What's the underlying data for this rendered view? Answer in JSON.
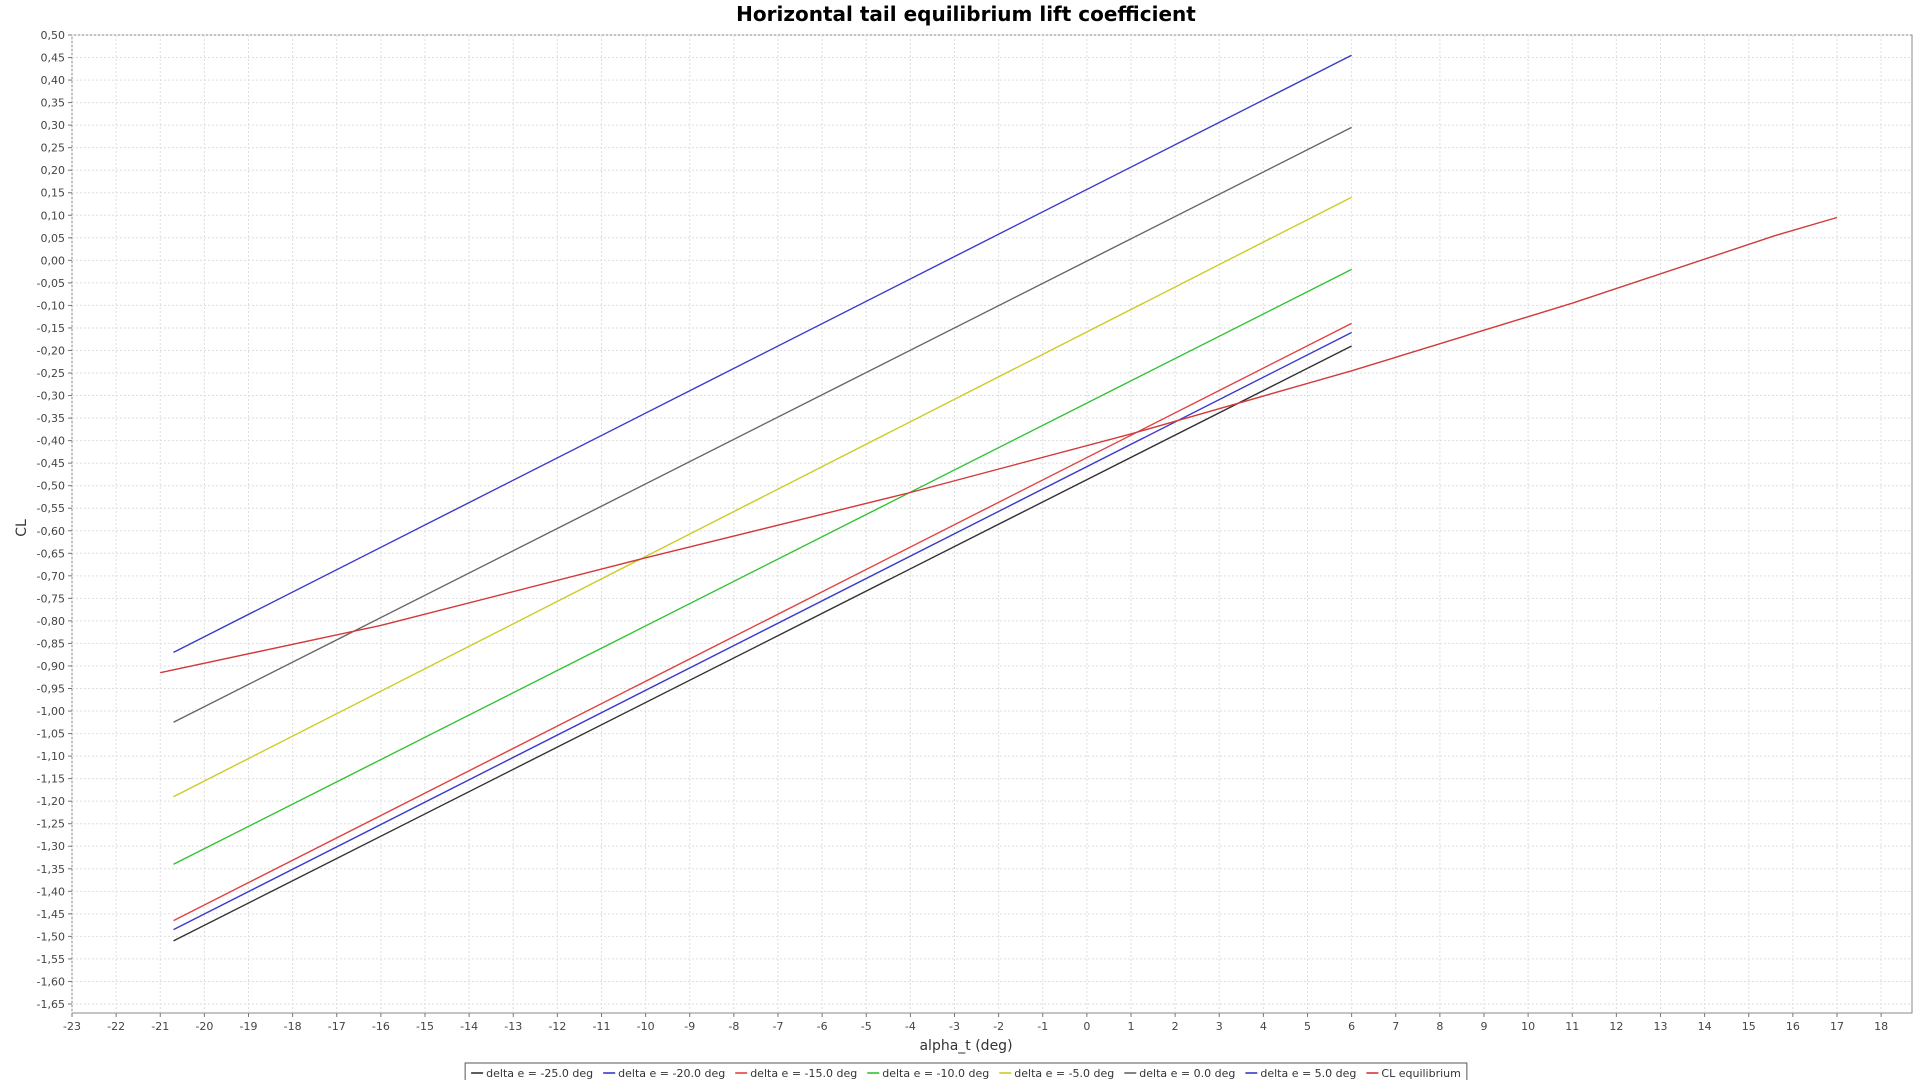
{
  "chart_data": {
    "type": "line",
    "title": "Horizontal tail equilibrium lift coefficient",
    "xlabel": "alpha_t (deg)",
    "ylabel": "CL",
    "xlim": [
      -23,
      18.7
    ],
    "ylim": [
      -1.67,
      0.5
    ],
    "xticks": [
      -23,
      -22,
      -21,
      -20,
      -19,
      -18,
      -17,
      -16,
      -15,
      -14,
      -13,
      -12,
      -11,
      -10,
      -9,
      -8,
      -7,
      -6,
      -5,
      -4,
      -3,
      -2,
      -1,
      0,
      1,
      2,
      3,
      4,
      5,
      6,
      7,
      8,
      9,
      10,
      11,
      12,
      13,
      14,
      15,
      16,
      17,
      18
    ],
    "yticks": [
      "0,50",
      "0,45",
      "0,40",
      "0,35",
      "0,30",
      "0,25",
      "0,20",
      "0,15",
      "0,10",
      "0,05",
      "0,00",
      "-0,05",
      "-0,10",
      "-0,15",
      "-0,20",
      "-0,25",
      "-0,30",
      "-0,35",
      "-0,40",
      "-0,45",
      "-0,50",
      "-0,55",
      "-0,60",
      "-0,65",
      "-0,70",
      "-0,75",
      "-0,80",
      "-0,85",
      "-0,90",
      "-0,95",
      "-1,00",
      "-1,05",
      "-1,10",
      "-1,15",
      "-1,20",
      "-1,25",
      "-1,30",
      "-1,35",
      "-1,40",
      "-1,45",
      "-1,50",
      "-1,55",
      "-1,60",
      "-1,65"
    ],
    "grid": true,
    "legend_position": "bottom-center",
    "series": [
      {
        "name": "delta e = -25.0 deg",
        "color": "#333333",
        "x": [
          -20.7,
          6
        ],
        "y": [
          -1.51,
          -0.19
        ]
      },
      {
        "name": "delta e = -20.0 deg",
        "color": "#3a3acc",
        "x": [
          -20.7,
          6
        ],
        "y": [
          -1.485,
          -0.16
        ]
      },
      {
        "name": "delta e = -15.0 deg",
        "color": "#e04343",
        "x": [
          -20.7,
          6
        ],
        "y": [
          -1.465,
          -0.14
        ]
      },
      {
        "name": "delta e = -10.0 deg",
        "color": "#33c233",
        "x": [
          -20.7,
          6
        ],
        "y": [
          -1.34,
          -0.02
        ]
      },
      {
        "name": "delta e = -5.0 deg",
        "color": "#cccc22",
        "x": [
          -20.7,
          6
        ],
        "y": [
          -1.19,
          0.14
        ]
      },
      {
        "name": "delta e = 0.0 deg",
        "color": "#666666",
        "x": [
          -20.7,
          6
        ],
        "y": [
          -1.025,
          0.295
        ]
      },
      {
        "name": "delta e = 5.0 deg",
        "color": "#3a3acc",
        "x": [
          -20.7,
          6
        ],
        "y": [
          -0.87,
          0.455
        ]
      },
      {
        "name": "CL equilibrium",
        "color": "#d23a3a",
        "x": [
          -21,
          -16,
          -10,
          -4,
          1,
          6,
          11,
          15.6,
          17
        ],
        "y": [
          -0.915,
          -0.81,
          -0.66,
          -0.515,
          -0.385,
          -0.245,
          -0.095,
          0.055,
          0.095
        ]
      }
    ]
  }
}
